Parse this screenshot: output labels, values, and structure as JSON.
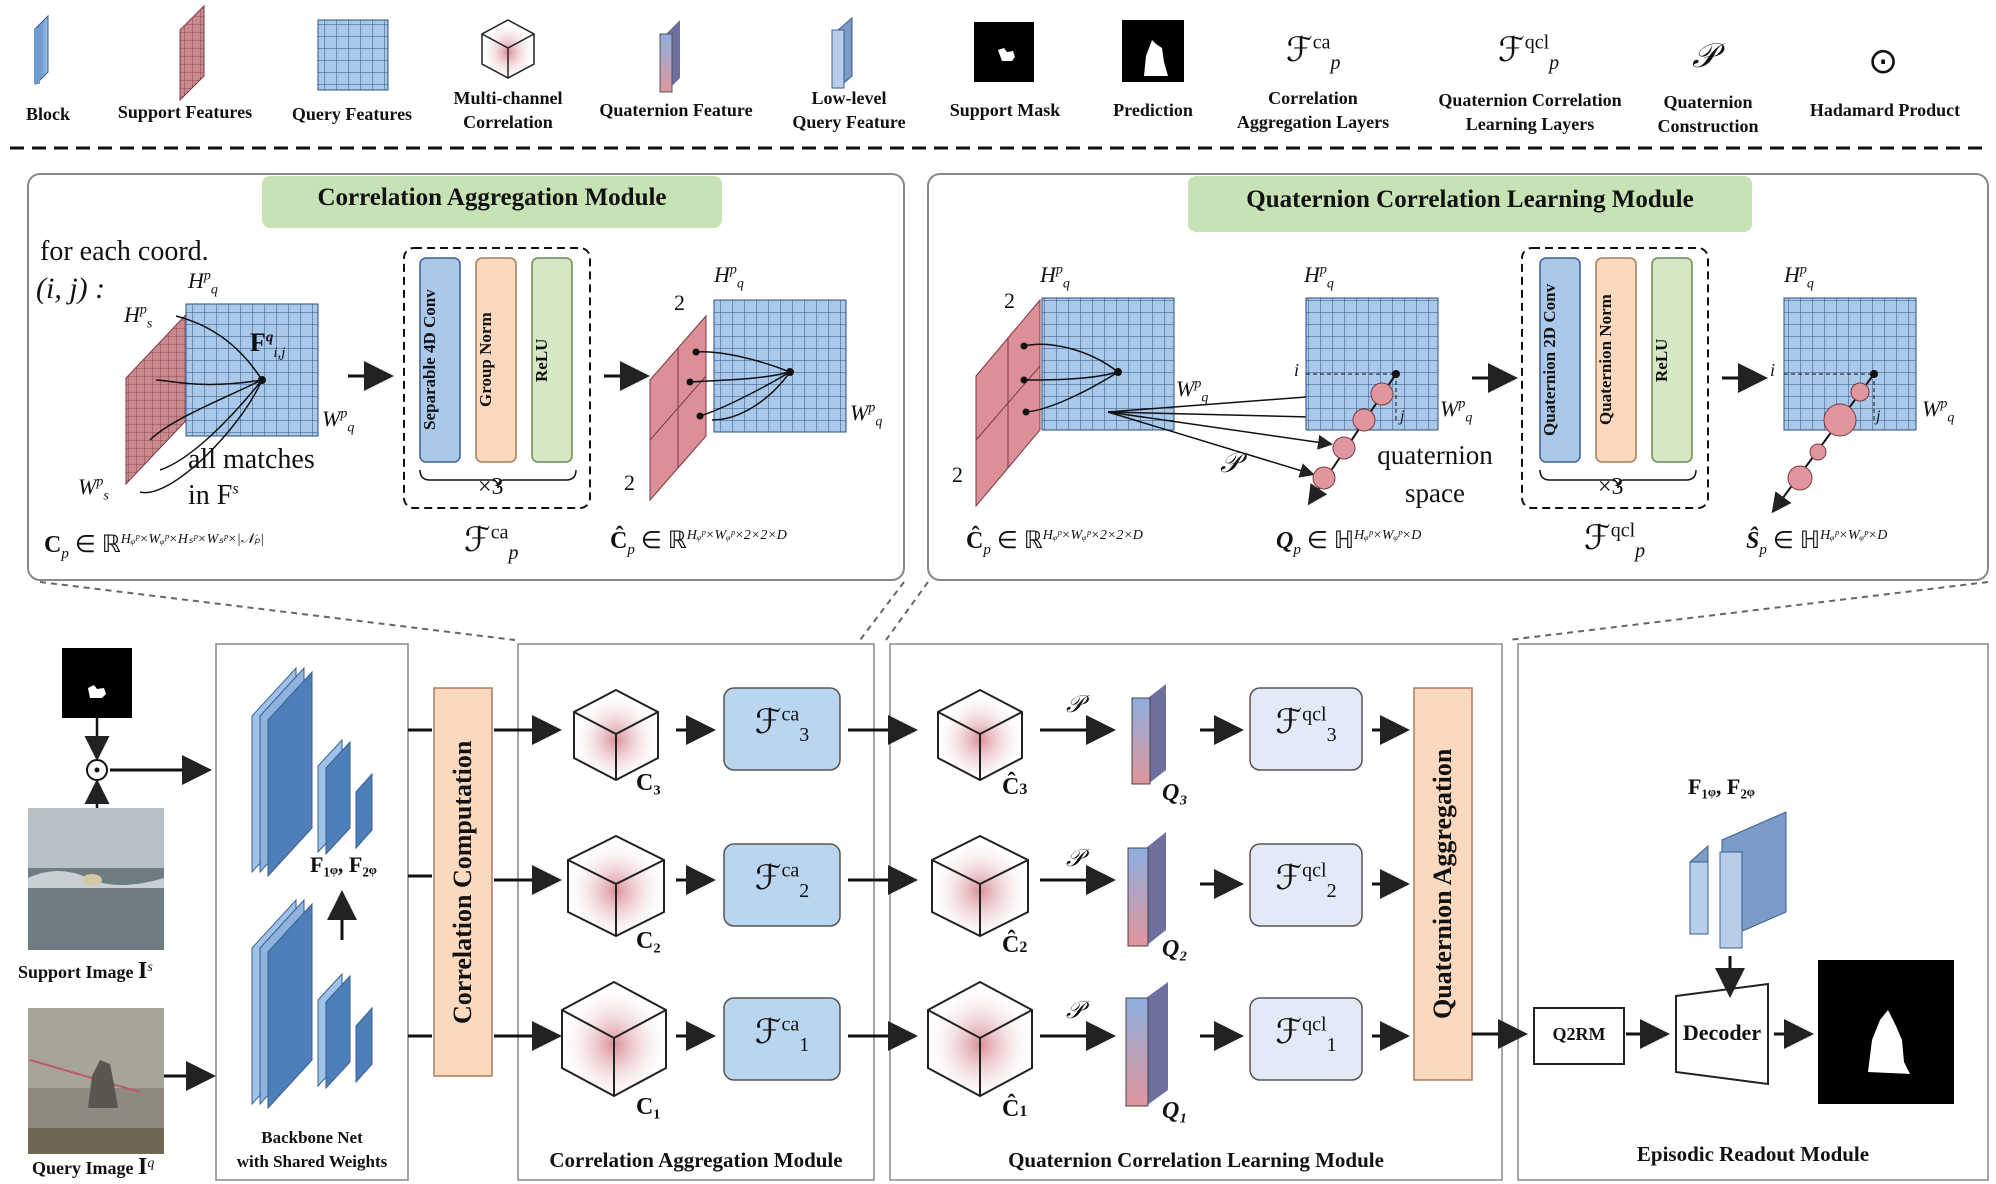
{
  "legend": {
    "block": "Block",
    "support_features": "Support Features",
    "query_features": "Query Features",
    "multichannel_1": "Multi-channel",
    "multichannel_2": "Correlation",
    "quaternion_feature": "Quaternion Feature",
    "lowlevel_1": "Low-level",
    "lowlevel_2": "Query Feature",
    "support_mask": "Support Mask",
    "prediction": "Prediction",
    "f_ca_sym": "ℱ",
    "f_ca_sup": "ca",
    "f_ca_sub": "p",
    "corr_agg_1": "Correlation",
    "corr_agg_2": "Aggregation Layers",
    "f_qcl_sym": "ℱ",
    "f_qcl_sup": "qcl",
    "f_qcl_sub": "p",
    "qcl_1": "Quaternion Correlation",
    "qcl_2": "Learning Layers",
    "p_sym": "𝒫",
    "qc_1": "Quaternion",
    "qc_2": "Construction",
    "hadamard_sym": "⊙",
    "hadamard": "Hadamard Product"
  },
  "cam": {
    "title": "Correlation Aggregation Module",
    "for_each": "for each coord.",
    "coord": "(i, j) :",
    "hq": "H",
    "hq_sub": "q",
    "hq_sup": "p",
    "hs": "H",
    "hs_sub": "s",
    "hs_sup": "p",
    "fq": "F",
    "fq_sup": "q",
    "fq_sub": "i,j",
    "wq": "W",
    "wq_sub": "q",
    "wq_sup": "p",
    "ws": "W",
    "ws_sub": "s",
    "ws_sup": "p",
    "all_matches": "all matches",
    "in_fs": "in F",
    "in_fs_sup": "s",
    "sep4d": "Separable 4D Conv",
    "groupnorm": "Group Norm",
    "relu": "ReLU",
    "times3": "×3",
    "cp_formula": "C",
    "cp_sub": "p",
    "cp_rest": " ∈ ℝ",
    "cp_exp": "Hᵩᵖ×Wᵩᵖ×Hₛᵖ×Wₛᵖ×|𝒩ₚ|",
    "fca": "ℱ",
    "fca_sup": "ca",
    "fca_sub": "p",
    "chat_rest": " ∈ ℝ",
    "chat_exp": "Hᵩᵖ×Wᵩᵖ×2×2×D",
    "two": "2"
  },
  "qclm": {
    "title": "Quaternion Correlation Learning Module",
    "i": "i",
    "j": "j",
    "p": "𝒫",
    "qspace_1": "quaternion",
    "qspace_2": "space",
    "q2d": "Quaternion 2D Conv",
    "qnorm": "Quaternion Norm",
    "relu": "ReLU",
    "times3": "×3",
    "q_formula": "Q",
    "q_rest": " ∈ ℍ",
    "q_exp": "Hᵩᵖ×Wᵩᵖ×D",
    "fqcl": "ℱ",
    "fqcl_sup": "qcl",
    "fqcl_sub": "p"
  },
  "main": {
    "support_image": "Support Image",
    "support_sym": "I",
    "support_sup": "s",
    "query_image": "Query Image",
    "query_sym": "I",
    "query_sup": "q",
    "backbone_1": "Backbone Net",
    "backbone_2": "with Shared Weights",
    "f1f2": "F₁ᵩ, F₂ᵩ",
    "corr_comp": "Correlation Computation",
    "c3": "C₃",
    "c2": "C₂",
    "c1": "C₁",
    "f3ca": "ℱ",
    "f3ca_sup": "ca",
    "f3ca_sub": "3",
    "f2ca": "ℱ",
    "f2ca_sup": "ca",
    "f2ca_sub": "2",
    "f1ca": "ℱ",
    "f1ca_sup": "ca",
    "f1ca_sub": "1",
    "q3": "Q₃",
    "q2": "Q₂",
    "q1": "Q₁",
    "f3qcl_sup": "qcl",
    "f3qcl_sub": "3",
    "f2qcl_sup": "qcl",
    "f2qcl_sub": "2",
    "f1qcl_sup": "qcl",
    "f1qcl_sub": "1",
    "p": "𝒫",
    "quat_agg": "Quaternion Aggregation",
    "q2rm": "Q2RM",
    "decoder": "Decoder",
    "cam_label": "Correlation Aggregation Module",
    "qclm_label": "Quaternion Correlation Learning Module",
    "erm_label": "Episodic Readout Module",
    "f1f2_top": "F₁ᵩ, F₂ᵩ"
  },
  "colors": {
    "blue": "#a9c8ea",
    "blue_dark": "#3a5f8f",
    "pink": "#d98f96",
    "peach": "#fbd9bf",
    "green": "#d5e8c5",
    "title_green": "#c7e3b5",
    "cube_pink": "#e9b4ba",
    "qcl_box": "#e3e9f6",
    "ca_box": "#bad5ef"
  }
}
